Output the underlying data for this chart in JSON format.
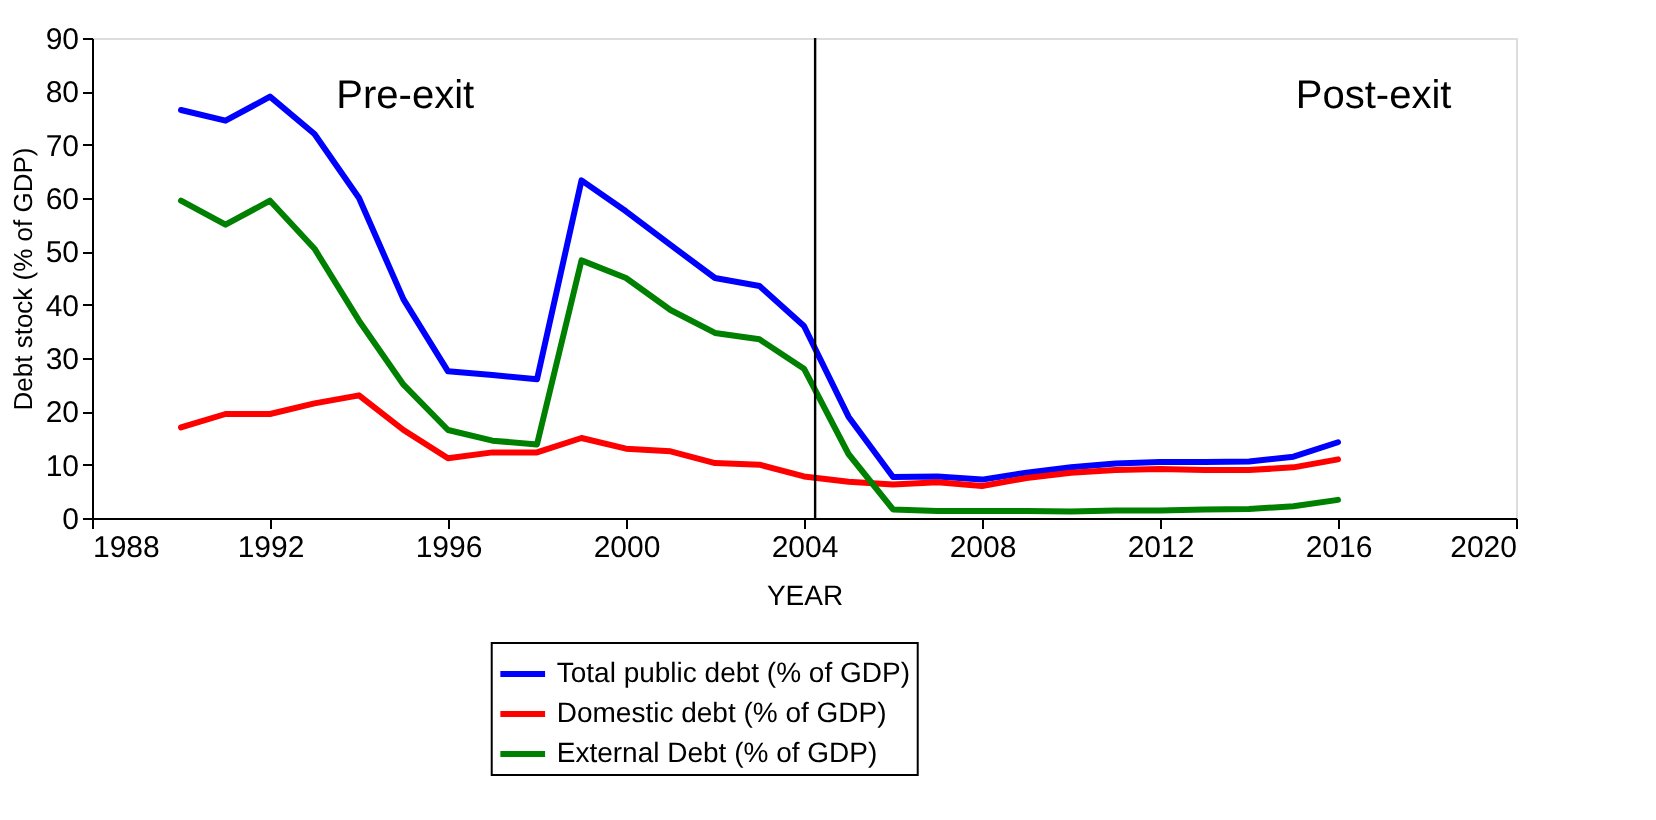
{
  "chart_data": {
    "type": "line",
    "xlabel": "YEAR",
    "ylabel": "Debt stock (% of GDP)",
    "x": [
      1990,
      1991,
      1992,
      1993,
      1994,
      1995,
      1996,
      1997,
      1998,
      1999,
      2000,
      2001,
      2002,
      2003,
      2004,
      2005,
      2006,
      2007,
      2008,
      2009,
      2010,
      2011,
      2012,
      2013,
      2014,
      2015,
      2016
    ],
    "series": [
      {
        "name": "Total public debt (% of GDP)",
        "color": "#0000ff",
        "values": [
          76.5,
          74.5,
          79,
          72,
          60,
          41,
          27.5,
          26.8,
          26,
          63.3,
          57.5,
          51.2,
          45,
          43.5,
          36,
          19,
          7.7,
          7.8,
          7.2,
          8.5,
          9.5,
          10.2,
          10.5,
          10.5,
          10.6,
          11.5,
          14.2
        ]
      },
      {
        "name": "Domestic debt (% of GDP)",
        "color": "#ff0000",
        "values": [
          17,
          19.5,
          19.5,
          21.5,
          23,
          16.5,
          11.2,
          12.3,
          12.3,
          15,
          13,
          12.5,
          10.3,
          10,
          7.8,
          6.8,
          6.3,
          6.7,
          6,
          7.5,
          8.5,
          9,
          9.2,
          9,
          9,
          9.5,
          11
        ]
      },
      {
        "name": "External Debt (% of GDP)",
        "color": "#008000",
        "values": [
          59.5,
          55,
          59.5,
          50.5,
          37,
          25,
          16.5,
          14.5,
          13.8,
          48.3,
          45,
          39,
          34.7,
          33.5,
          28,
          12,
          1.6,
          1.3,
          1.3,
          1.3,
          1.2,
          1.4,
          1.4,
          1.6,
          1.7,
          2.2,
          3.4
        ]
      }
    ],
    "xlim": [
      1988,
      2020
    ],
    "xticks": [
      1988,
      1992,
      1996,
      2000,
      2004,
      2008,
      2012,
      2016,
      2020
    ],
    "ylim": [
      0,
      90
    ],
    "yticks": [
      0,
      10,
      20,
      30,
      40,
      50,
      60,
      70,
      80,
      90
    ],
    "ref_lines": [
      {
        "axis": "x",
        "value": 2004.25,
        "color": "#000000",
        "line_style": "solid"
      }
    ],
    "annotations": [
      "Pre-exit",
      "Post-exit"
    ],
    "grid": false,
    "legend": "bottom",
    "marker": "none",
    "line_style": "solid"
  }
}
